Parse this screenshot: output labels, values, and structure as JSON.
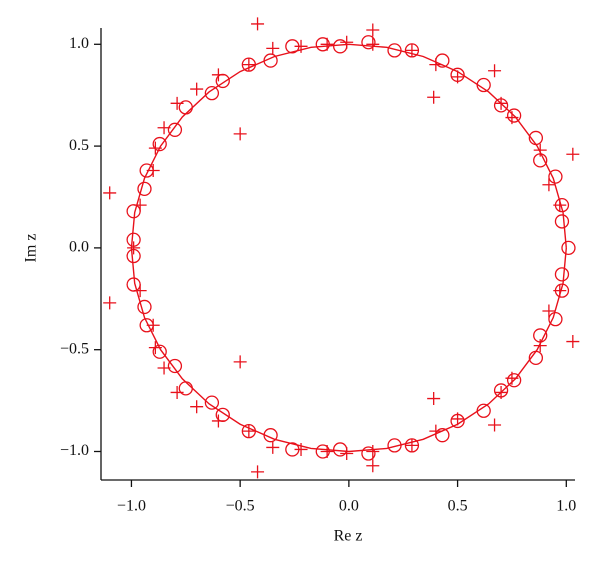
{
  "chart_data": {
    "type": "scatter",
    "xlabel": "Re z",
    "ylabel": "Im z",
    "xlim": [
      -1.14,
      1.04
    ],
    "ylim": [
      -1.14,
      1.08
    ],
    "xticks": [
      {
        "value": -1,
        "label": "−1.0"
      },
      {
        "value": -0.5,
        "label": "−0.5"
      },
      {
        "value": 0,
        "label": "0.0"
      },
      {
        "value": 0.5,
        "label": "0.5"
      },
      {
        "value": 1,
        "label": "1.0"
      }
    ],
    "yticks": [
      {
        "value": -1,
        "label": "−1.0"
      },
      {
        "value": -0.5,
        "label": "−0.5"
      },
      {
        "value": 0,
        "label": "0.0"
      },
      {
        "value": 0.5,
        "label": "0.5"
      },
      {
        "value": 1,
        "label": "1.0"
      }
    ],
    "series": [
      {
        "marker": "circle",
        "color": "#e8111b",
        "x": [
          1.01,
          0.98,
          0.98,
          0.95,
          0.88,
          0.86,
          0.76,
          0.7,
          0.62,
          0.5,
          0.43,
          0.29,
          0.21,
          0.09,
          -0.04,
          -0.12,
          -0.26,
          -0.36,
          -0.46,
          -0.58,
          -0.63,
          -0.75,
          -0.8,
          -0.87,
          -0.93,
          -0.94,
          -0.99,
          -0.99,
          0.98,
          0.98,
          0.95,
          0.88,
          0.86,
          0.76,
          0.7,
          0.62,
          0.5,
          0.43,
          0.29,
          0.21,
          0.09,
          -0.04,
          -0.12,
          -0.26,
          -0.36,
          -0.46,
          -0.58,
          -0.63,
          -0.75,
          -0.8,
          -0.87,
          -0.93,
          -0.94,
          -0.99,
          -0.99
        ],
        "y": [
          0,
          0.13,
          0.21,
          0.35,
          0.43,
          0.54,
          0.65,
          0.7,
          0.8,
          0.85,
          0.92,
          0.97,
          0.97,
          1.01,
          0.99,
          1.0,
          0.99,
          0.92,
          0.9,
          0.82,
          0.76,
          0.69,
          0.58,
          0.51,
          0.38,
          0.29,
          0.18,
          0.04,
          -0.13,
          -0.21,
          -0.35,
          -0.43,
          -0.54,
          -0.65,
          -0.7,
          -0.8,
          -0.85,
          -0.92,
          -0.97,
          -0.97,
          -1.01,
          -0.99,
          -1.0,
          -0.99,
          -0.92,
          -0.9,
          -0.82,
          -0.76,
          -0.69,
          -0.58,
          -0.51,
          -0.38,
          -0.29,
          -0.18,
          -0.04
        ]
      },
      {
        "marker": "plus",
        "color": "#e8111b",
        "x": [
          -0.99,
          1.03,
          0.92,
          0.97,
          0.88,
          0.75,
          0.7,
          0.67,
          0.5,
          0.4,
          0.39,
          0.29,
          0.11,
          0.11,
          -0.01,
          -0.1,
          -0.22,
          -0.35,
          -0.42,
          -0.46,
          -0.5,
          -0.6,
          -0.7,
          -0.79,
          -0.85,
          -0.89,
          -0.9,
          -0.96,
          -1.1,
          1.03,
          0.92,
          0.97,
          0.88,
          0.75,
          0.7,
          0.67,
          0.5,
          0.4,
          0.39,
          0.29,
          0.11,
          0.11,
          -0.01,
          -0.1,
          -0.22,
          -0.35,
          -0.42,
          -0.46,
          -0.5,
          -0.6,
          -0.7,
          -0.79,
          -0.85,
          -0.89,
          -0.9,
          -0.96,
          -1.1
        ],
        "y": [
          0,
          0.46,
          0.31,
          0.21,
          0.48,
          0.64,
          0.71,
          0.87,
          0.84,
          0.9,
          0.74,
          0.97,
          1.07,
          1.0,
          1.01,
          1.0,
          0.99,
          0.98,
          1.1,
          0.9,
          0.56,
          0.85,
          0.78,
          0.71,
          0.59,
          0.49,
          0.38,
          0.21,
          0.27,
          -0.46,
          -0.31,
          -0.21,
          -0.48,
          -0.64,
          -0.71,
          -0.87,
          -0.84,
          -0.9,
          -0.74,
          -0.97,
          -1.07,
          -1.0,
          -1.01,
          -1.0,
          -0.99,
          -0.98,
          -1.1,
          -0.9,
          -0.56,
          -0.85,
          -0.78,
          -0.71,
          -0.59,
          -0.49,
          -0.38,
          -0.21,
          -0.27
        ]
      },
      {
        "marker": "line",
        "color": "#e8111b",
        "x": [
          1,
          0.985,
          0.94,
          0.866,
          0.766,
          0.643,
          0.5,
          0.342,
          0.174,
          0,
          -0.174,
          -0.342,
          -0.5,
          -0.643,
          -0.766,
          -0.866,
          -0.94,
          -0.985,
          -1,
          -0.985,
          -0.94,
          -0.866,
          -0.766,
          -0.643,
          -0.5,
          -0.342,
          -0.174,
          0,
          0.174,
          0.342,
          0.5,
          0.643,
          0.766,
          0.866,
          0.94,
          0.985,
          1
        ],
        "y": [
          0,
          0.174,
          0.342,
          0.5,
          0.643,
          0.766,
          0.866,
          0.94,
          0.985,
          1,
          0.985,
          0.94,
          0.866,
          0.766,
          0.643,
          0.5,
          0.342,
          0.174,
          0,
          -0.174,
          -0.342,
          -0.5,
          -0.643,
          -0.766,
          -0.866,
          -0.94,
          -0.985,
          -1,
          -0.985,
          -0.94,
          -0.866,
          -0.766,
          -0.643,
          -0.5,
          -0.342,
          -0.174,
          0
        ]
      }
    ]
  }
}
